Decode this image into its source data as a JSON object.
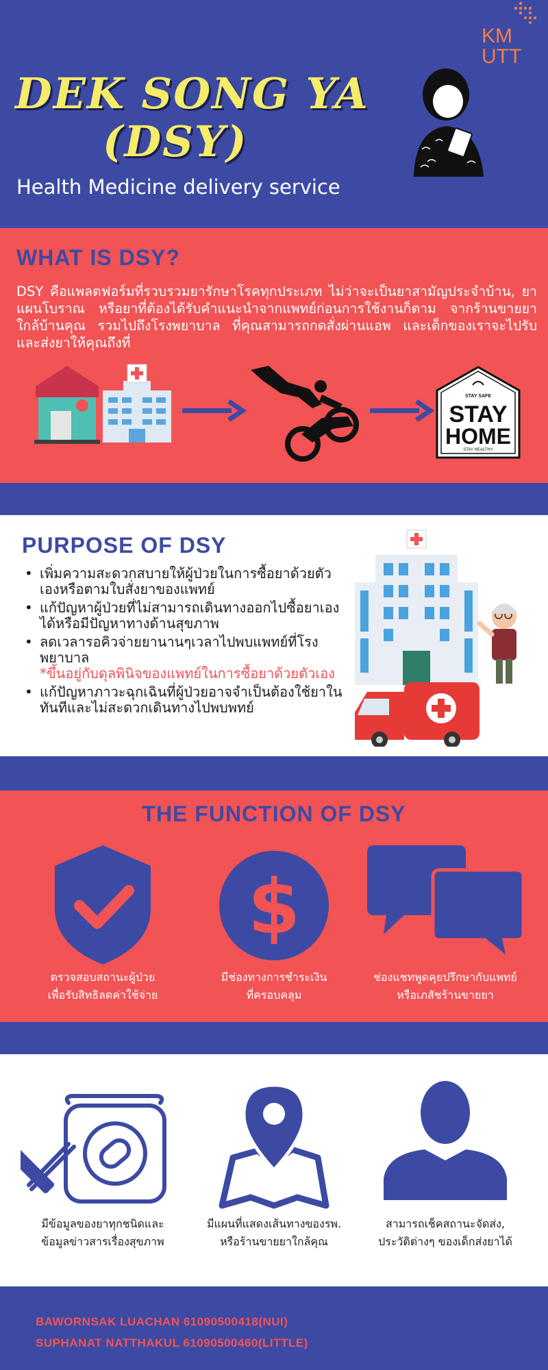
{
  "header": {
    "title_line1": "DEK SONG YA",
    "title_line2": "(DSY)",
    "subtitle": "Health Medicine delivery service",
    "logo_text": "KMUTT"
  },
  "what_is": {
    "title": "WHAT IS DSY?",
    "body": "DSY คือแพลตฟอร์มที่รวบรวมยารักษาโรคทุกประเภท ไม่ว่าจะเป็นยาสามัญประจำบ้าน, ยาแผนโบราณ หรือยาที่ต้องได้รับคำแนะนำจากแพทย์ก่อนการใช้งานก็ตาม จากร้านขายยาใกล้บ้านคุณ รวมไปถึงโรงพยาบาล ที่คุณสามารถกดสั่งผ่านแอพ และเด็กของเราจะไปรับและส่งยาให้คุณถึงที่",
    "stay_safe": "STAY SAFE",
    "stay": "STAY",
    "home": "HOME",
    "stay_healthy": "STAY HEALTHY"
  },
  "purpose": {
    "title": "PURPOSE OF DSY",
    "items": [
      "เพิ่มความสะดวกสบายให้ผู้ป่วยในการซื้อยาด้วยตัวเองหรือตามใบสั่งยาของแพทย์",
      "แก้ปัญหาผู้ป่วยที่ไม่สามารถเดินทางออกไปซื้อยาเองได้หรือมีปัญหาทางด้านสุขภาพ",
      "ลดเวลารอคิวจ่ายยานานๆเวลาไปพบแพทย์ที่โรงพยาบาล",
      "แก้ปัญหาภาวะฉุกเฉินที่ผู้ป่วยอาจจำเป็นต้องใช้ยาในทันทีและไม่สะดวกเดินทางไปพบพทย์"
    ],
    "note": "*ขึ้นอยู่กับดุลพินิจของแพทย์ในการซื้อยาด้วยตัวเอง"
  },
  "functions": {
    "title": "THE FUNCTION OF DSY",
    "row1": [
      {
        "icon": "shield-check-icon",
        "line1": "ตรวจสอบสถานะผู้ป่วย",
        "line2": "เพื่อรับสิทธิลดค่าใช้จ่าย"
      },
      {
        "icon": "dollar-icon",
        "line1": "มีช่องทางการชำระเงิน",
        "line2": "ที่ครอบคลุม"
      },
      {
        "icon": "chat-icon",
        "line1": "ช่องแชทพูดคุยปรึกษากับแพทย์",
        "line2": "หรือเภสัชร้านขายยา"
      }
    ],
    "row2": [
      {
        "icon": "pill-jar-icon",
        "line1": "มีข้อมูลของยาทุกชนิดและ",
        "line2": "ข้อมูลข่าวสารเรื่องสุขภาพ"
      },
      {
        "icon": "map-pin-icon",
        "line1": "มีแผนที่แสดงเส้นทางของรพ.",
        "line2": "หรือร้านขายยาใกล้คุณ"
      },
      {
        "icon": "user-icon",
        "line1": "สามารถเช็คสถานะจัดส่ง,",
        "line2": "ประวัติต่างๆ ของเด็กส่งยาได้"
      }
    ]
  },
  "credits": [
    "BAWORNSAK LUACHAN 61090500418(NUI)",
    "SUPHANAT NATTHAKUL 61090500460(LITTLE)"
  ],
  "colors": {
    "blue": "#3d4aa3",
    "red": "#f25355",
    "yellow": "#f4ec6a",
    "white": "#ffffff"
  }
}
